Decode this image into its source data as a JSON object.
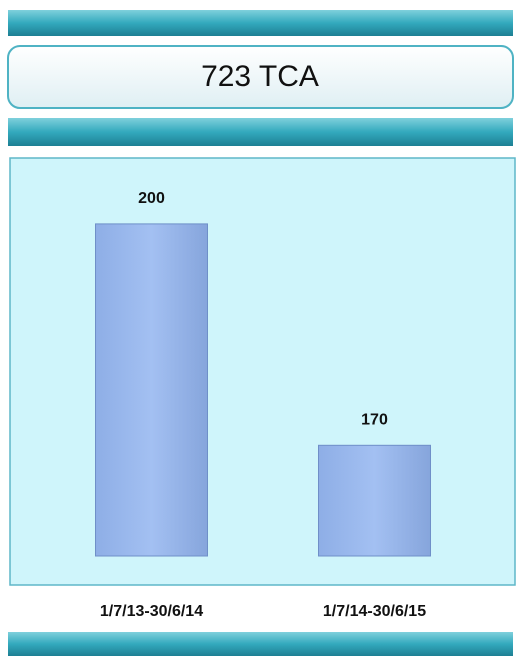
{
  "chart_data": {
    "type": "bar",
    "title": "723 TCA",
    "categories": [
      "1/7/13-30/6/14",
      "1/7/14-30/6/15"
    ],
    "values": [
      200,
      170
    ],
    "color": "#9dbbef",
    "ylim": [
      155,
      205
    ]
  }
}
